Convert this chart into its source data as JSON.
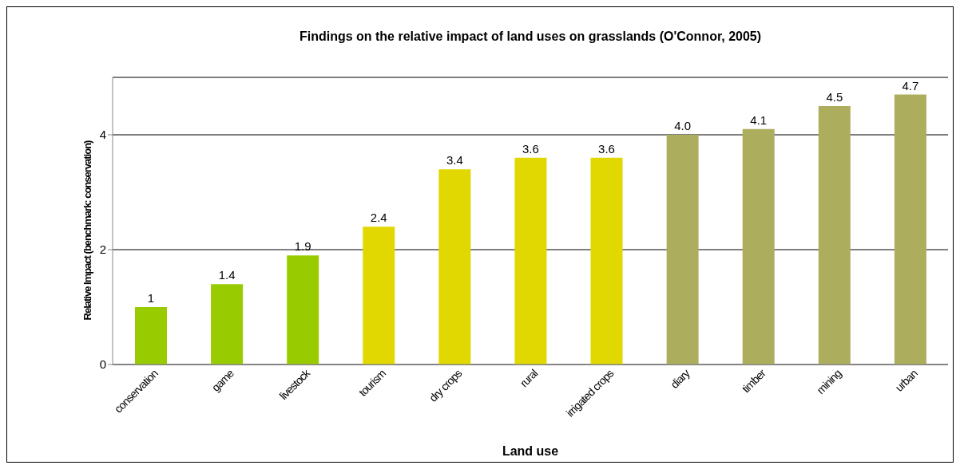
{
  "chart_data": {
    "type": "bar",
    "title": "Findings on the relative impact of land uses on grasslands (O'Connor, 2005)",
    "xlabel": "Land use",
    "ylabel": "Relative Impact (benchmark: conservation)",
    "categories": [
      "conservation",
      "game",
      "livestock",
      "tourism",
      "dry crops",
      "rural",
      "irrigated crops",
      "diary",
      "timber",
      "mining",
      "urban"
    ],
    "values": [
      1,
      1.4,
      1.9,
      2.4,
      3.4,
      3.6,
      3.6,
      4.0,
      4.1,
      4.5,
      4.7
    ],
    "value_labels": [
      "1",
      "1.4",
      "1.9",
      "2.4",
      "3.4",
      "3.6",
      "3.6",
      "4.0",
      "4.1",
      "4.5",
      "4.7"
    ],
    "colors": [
      "#99cc00",
      "#99cc00",
      "#99cc00",
      "#e0d800",
      "#e0d800",
      "#e0d800",
      "#e0d800",
      "#adad5e",
      "#adad5e",
      "#adad5e",
      "#adad5e"
    ],
    "ylim": [
      0,
      5
    ],
    "yticks": [
      0,
      2,
      4
    ],
    "grid": "y"
  }
}
